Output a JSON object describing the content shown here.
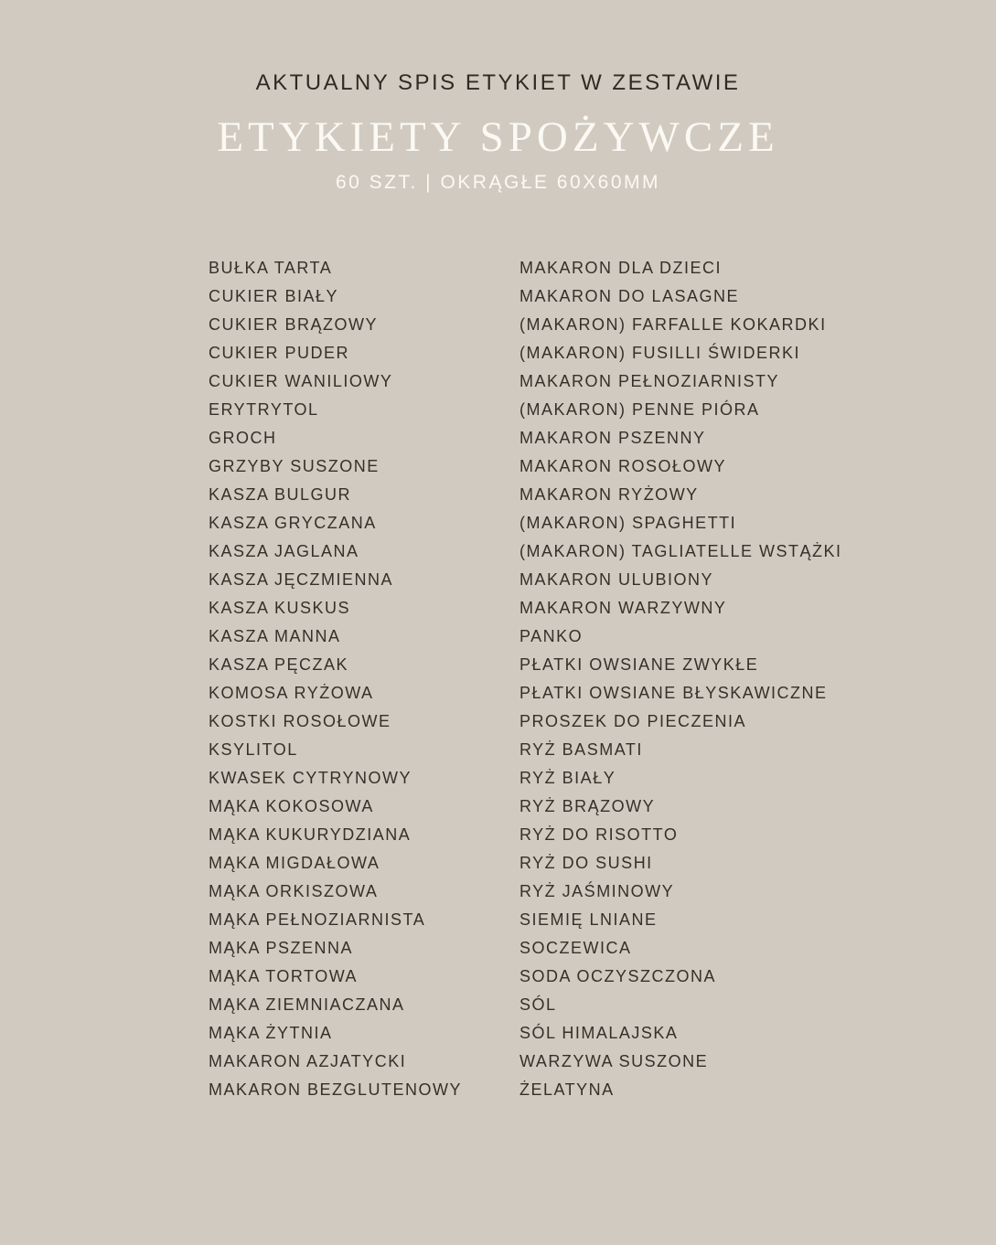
{
  "page": {
    "eyebrow": "AKTUALNY SPIS ETYKIET W ZESTAWIE",
    "title": "ETYKIETY SPOŻYWCZE",
    "subtitle": "60 SZT. | OKRĄGŁE 60X60MM"
  },
  "colors": {
    "background": "#d1cac0",
    "dark_text": "#36302a",
    "light_text": "#fbf9f4"
  },
  "list": {
    "column_left": [
      "BUŁKA TARTA",
      "CUKIER BIAŁY",
      "CUKIER BRĄZOWY",
      "CUKIER PUDER",
      "CUKIER WANILIOWY",
      "ERYTRYTOL",
      "GROCH",
      "GRZYBY SUSZONE",
      "KASZA BULGUR",
      "KASZA GRYCZANA",
      "KASZA JAGLANA",
      "KASZA JĘCZMIENNA",
      "KASZA KUSKUS",
      "KASZA MANNA",
      "KASZA PĘCZAK",
      "KOMOSA RYŻOWA",
      "KOSTKI ROSOŁOWE",
      "KSYLITOL",
      "KWASEK CYTRYNOWY",
      "MĄKA KOKOSOWA",
      "MĄKA KUKURYDZIANA",
      "MĄKA MIGDAŁOWA",
      "MĄKA ORKISZOWA",
      "MĄKA PEŁNOZIARNISTA",
      "MĄKA PSZENNA",
      "MĄKA TORTOWA",
      "MĄKA ZIEMNIACZANA",
      "MĄKA ŻYTNIA",
      "MAKARON AZJATYCKI",
      "MAKARON BEZGLUTENOWY"
    ],
    "column_right": [
      "MAKARON DLA DZIECI",
      "MAKARON DO LASAGNE",
      "(MAKARON) FARFALLE KOKARDKI",
      "(MAKARON) FUSILLI ŚWIDERKI",
      "MAKARON PEŁNOZIARNISTY",
      "(MAKARON) PENNE PIÓRA",
      "MAKARON PSZENNY",
      "MAKARON ROSOŁOWY",
      "MAKARON RYŻOWY",
      "(MAKARON) SPAGHETTI",
      "(MAKARON) TAGLIATELLE WSTĄŻKI",
      "MAKARON ULUBIONY",
      "MAKARON WARZYWNY",
      "PANKO",
      "PŁATKI OWSIANE ZWYKŁE",
      "PŁATKI OWSIANE BŁYSKAWICZNE",
      "PROSZEK DO PIECZENIA",
      "RYŻ BASMATI",
      "RYŻ BIAŁY",
      "RYŻ BRĄZOWY",
      "RYŻ DO RISOTTO",
      "RYŻ DO SUSHI",
      "RYŻ JAŚMINOWY",
      "SIEMIĘ LNIANE",
      "SOCZEWICA",
      "SODA OCZYSZCZONA",
      "SÓL",
      "SÓL HIMALAJSKA",
      "WARZYWA SUSZONE",
      "ŻELATYNA"
    ]
  }
}
